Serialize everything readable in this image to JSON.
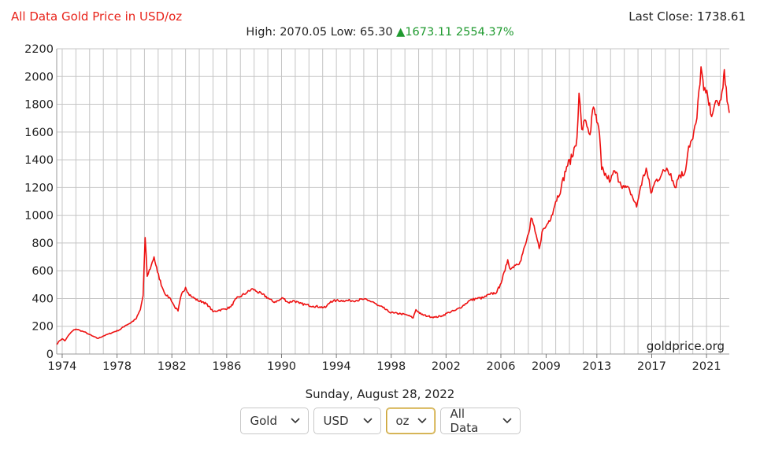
{
  "header": {
    "title": "All Data Gold Price in USD/oz",
    "last_close_label": "Last Close:",
    "last_close_value": "1738.61",
    "high_label": "High:",
    "high_value": "2070.05",
    "low_label": "Low:",
    "low_value": "65.30",
    "change_arrow": "▲",
    "change_value": "1673.11",
    "change_percent": "2554.37%"
  },
  "watermark": "goldprice.org",
  "date_label": "Sunday, August 28, 2022",
  "controls": [
    {
      "name": "metal-select",
      "value": "Gold",
      "active": false
    },
    {
      "name": "currency-select",
      "value": "USD",
      "active": false
    },
    {
      "name": "unit-select",
      "value": "oz",
      "active": true
    },
    {
      "name": "range-select",
      "value": "All Data",
      "active": false
    }
  ],
  "colors": {
    "line": "#ee1111",
    "title": "#e8231a",
    "change_up": "#1f9a2f",
    "grid": "#c4c4c4"
  },
  "chart_data": {
    "type": "line",
    "title": "All Data Gold Price in USD/oz",
    "xlabel": "",
    "ylabel": "",
    "x_range": [
      1973.6,
      2022.66
    ],
    "ylim": [
      0,
      2200
    ],
    "y_ticks": [
      0,
      200,
      400,
      600,
      800,
      1000,
      1200,
      1400,
      1600,
      1800,
      2000,
      2200
    ],
    "x_tick_labels": [
      "1974",
      "1978",
      "1982",
      "1986",
      "1990",
      "1994",
      "1998",
      "2002",
      "2006",
      "2009",
      "2013",
      "2017",
      "2021"
    ],
    "x_tick_years": [
      1974,
      1978,
      1982,
      1986,
      1990,
      1994,
      1998,
      2002,
      2006,
      2009.3,
      2013,
      2017,
      2021
    ],
    "grid": true,
    "legend": "none",
    "series": [
      {
        "values": [
          [
            1973.6,
            70
          ],
          [
            1973.8,
            95
          ],
          [
            1974.0,
            110
          ],
          [
            1974.2,
            95
          ],
          [
            1974.5,
            140
          ],
          [
            1974.8,
            170
          ],
          [
            1975.0,
            180
          ],
          [
            1975.3,
            170
          ],
          [
            1975.6,
            160
          ],
          [
            1975.9,
            145
          ],
          [
            1976.2,
            130
          ],
          [
            1976.6,
            112
          ],
          [
            1977.0,
            130
          ],
          [
            1977.4,
            145
          ],
          [
            1977.8,
            160
          ],
          [
            1978.2,
            175
          ],
          [
            1978.6,
            205
          ],
          [
            1979.0,
            225
          ],
          [
            1979.4,
            255
          ],
          [
            1979.7,
            320
          ],
          [
            1979.9,
            420
          ],
          [
            1980.05,
            840
          ],
          [
            1980.2,
            560
          ],
          [
            1980.5,
            640
          ],
          [
            1980.7,
            700
          ],
          [
            1980.95,
            590
          ],
          [
            1981.3,
            480
          ],
          [
            1981.6,
            420
          ],
          [
            1981.9,
            400
          ],
          [
            1982.2,
            340
          ],
          [
            1982.45,
            310
          ],
          [
            1982.7,
            430
          ],
          [
            1983.0,
            480
          ],
          [
            1983.2,
            440
          ],
          [
            1983.5,
            410
          ],
          [
            1983.9,
            385
          ],
          [
            1984.3,
            375
          ],
          [
            1984.7,
            345
          ],
          [
            1985.0,
            305
          ],
          [
            1985.4,
            315
          ],
          [
            1985.9,
            325
          ],
          [
            1986.3,
            340
          ],
          [
            1986.7,
            400
          ],
          [
            1987.0,
            415
          ],
          [
            1987.5,
            445
          ],
          [
            1987.9,
            470
          ],
          [
            1988.2,
            450
          ],
          [
            1988.6,
            430
          ],
          [
            1989.0,
            405
          ],
          [
            1989.4,
            375
          ],
          [
            1989.8,
            385
          ],
          [
            1990.1,
            405
          ],
          [
            1990.5,
            370
          ],
          [
            1990.9,
            385
          ],
          [
            1991.3,
            365
          ],
          [
            1991.8,
            355
          ],
          [
            1992.3,
            345
          ],
          [
            1992.8,
            340
          ],
          [
            1993.2,
            335
          ],
          [
            1993.6,
            380
          ],
          [
            1994.0,
            385
          ],
          [
            1994.5,
            385
          ],
          [
            1995.0,
            385
          ],
          [
            1995.5,
            387
          ],
          [
            1996.0,
            395
          ],
          [
            1996.3,
            385
          ],
          [
            1996.7,
            375
          ],
          [
            1997.0,
            350
          ],
          [
            1997.4,
            335
          ],
          [
            1997.8,
            305
          ],
          [
            1998.2,
            295
          ],
          [
            1998.7,
            290
          ],
          [
            1999.2,
            280
          ],
          [
            1999.6,
            260
          ],
          [
            1999.8,
            320
          ],
          [
            2000.2,
            285
          ],
          [
            2000.7,
            272
          ],
          [
            2001.2,
            265
          ],
          [
            2001.7,
            275
          ],
          [
            2002.2,
            300
          ],
          [
            2002.7,
            315
          ],
          [
            2003.2,
            345
          ],
          [
            2003.7,
            385
          ],
          [
            2004.2,
            400
          ],
          [
            2004.7,
            405
          ],
          [
            2005.2,
            430
          ],
          [
            2005.7,
            445
          ],
          [
            2005.95,
            500
          ],
          [
            2006.3,
            600
          ],
          [
            2006.5,
            680
          ],
          [
            2006.7,
            610
          ],
          [
            2007.0,
            640
          ],
          [
            2007.4,
            665
          ],
          [
            2007.8,
            790
          ],
          [
            2008.1,
            900
          ],
          [
            2008.2,
            980
          ],
          [
            2008.5,
            880
          ],
          [
            2008.8,
            760
          ],
          [
            2009.0,
            880
          ],
          [
            2009.3,
            920
          ],
          [
            2009.7,
            1000
          ],
          [
            2010.0,
            1100
          ],
          [
            2010.4,
            1200
          ],
          [
            2010.8,
            1350
          ],
          [
            2011.2,
            1420
          ],
          [
            2011.55,
            1560
          ],
          [
            2011.7,
            1880
          ],
          [
            2011.9,
            1620
          ],
          [
            2012.2,
            1680
          ],
          [
            2012.5,
            1580
          ],
          [
            2012.75,
            1780
          ],
          [
            2013.0,
            1670
          ],
          [
            2013.2,
            1580
          ],
          [
            2013.35,
            1330
          ],
          [
            2013.7,
            1280
          ],
          [
            2014.0,
            1250
          ],
          [
            2014.3,
            1320
          ],
          [
            2014.7,
            1240
          ],
          [
            2015.0,
            1200
          ],
          [
            2015.4,
            1180
          ],
          [
            2015.9,
            1060
          ],
          [
            2016.2,
            1210
          ],
          [
            2016.6,
            1340
          ],
          [
            2016.95,
            1160
          ],
          [
            2017.3,
            1250
          ],
          [
            2017.7,
            1290
          ],
          [
            2018.1,
            1340
          ],
          [
            2018.4,
            1300
          ],
          [
            2018.7,
            1200
          ],
          [
            2019.0,
            1290
          ],
          [
            2019.4,
            1300
          ],
          [
            2019.7,
            1500
          ],
          [
            2020.0,
            1550
          ],
          [
            2020.3,
            1700
          ],
          [
            2020.6,
            2070
          ],
          [
            2020.8,
            1900
          ],
          [
            2021.1,
            1850
          ],
          [
            2021.3,
            1730
          ],
          [
            2021.6,
            1800
          ],
          [
            2021.9,
            1790
          ],
          [
            2022.2,
            1920
          ],
          [
            2022.3,
            2050
          ],
          [
            2022.5,
            1820
          ],
          [
            2022.66,
            1738
          ]
        ]
      }
    ]
  }
}
